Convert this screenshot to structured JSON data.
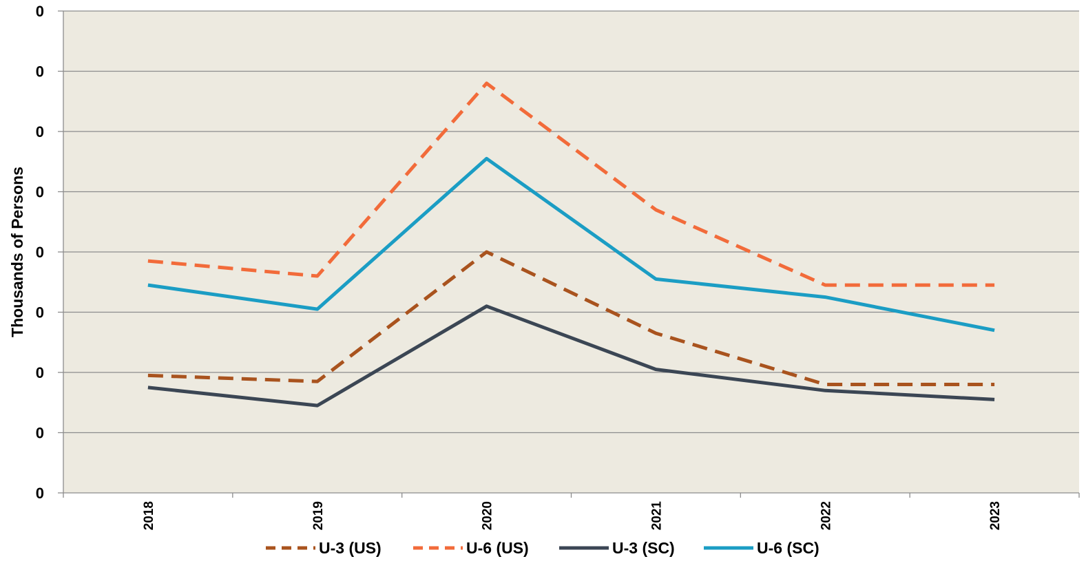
{
  "chart_data": {
    "type": "line",
    "categories": [
      "2018",
      "2019",
      "2020",
      "2021",
      "2022",
      "2023"
    ],
    "ylabel": "Thousands of Persons",
    "y_tick_labels": [
      "0",
      "0",
      "0",
      "0",
      "0",
      "0",
      "0",
      "0",
      "0"
    ],
    "ylim": [
      0,
      8
    ],
    "grid": true,
    "legend_position": "bottom",
    "plot_background": "#EDEAE0",
    "series": [
      {
        "name": "U-3 (US)",
        "color": "#A9531E",
        "dash": "dashed",
        "values": [
          1.95,
          1.85,
          4.0,
          2.65,
          1.8,
          1.8
        ]
      },
      {
        "name": "U-6 (US)",
        "color": "#F26B3A",
        "dash": "dashed",
        "values": [
          3.85,
          3.6,
          6.8,
          4.7,
          3.45,
          3.45
        ]
      },
      {
        "name": "U-3 (SC)",
        "color": "#3B4654",
        "dash": "solid",
        "values": [
          1.75,
          1.45,
          3.1,
          2.05,
          1.7,
          1.55
        ]
      },
      {
        "name": "U-6 (SC)",
        "color": "#1B9DC4",
        "dash": "solid",
        "values": [
          3.45,
          3.05,
          5.55,
          3.55,
          3.25,
          2.7
        ]
      }
    ]
  }
}
